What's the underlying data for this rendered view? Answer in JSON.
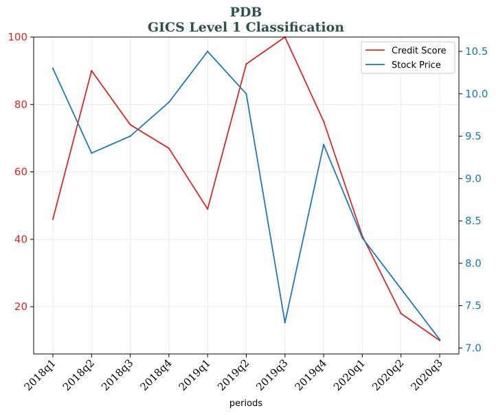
{
  "chart_data": {
    "type": "line",
    "title": "PDB",
    "subtitle": "GICS Level 1 Classification",
    "xlabel": "periods",
    "ylabel_left": "",
    "ylabel_right": "",
    "categories": [
      "2018q1",
      "2018q2",
      "2018q3",
      "2018q4",
      "2019q1",
      "2019q2",
      "2019q3",
      "2019q4",
      "2020q1",
      "2020q2",
      "2020q3"
    ],
    "y_left": {
      "range": [
        6,
        100
      ],
      "ticks": [
        20,
        40,
        60,
        80,
        100
      ],
      "tick_labels": [
        "20",
        "40",
        "60",
        "80",
        "100"
      ],
      "color": "#d62728"
    },
    "y_right": {
      "range": [
        6.93,
        10.67
      ],
      "ticks": [
        7.0,
        7.5,
        8.0,
        8.5,
        9.0,
        9.5,
        10.0,
        10.5
      ],
      "tick_labels": [
        "7.0",
        "7.5",
        "8.0",
        "8.5",
        "9.0",
        "9.5",
        "10.0",
        "10.5"
      ],
      "color": "#1f77b4"
    },
    "series": [
      {
        "name": "Credit Score",
        "axis": "left",
        "color": "#d62728",
        "values": [
          46,
          90,
          74,
          67,
          49,
          92,
          100,
          75,
          41,
          18,
          10
        ]
      },
      {
        "name": "Stock Price",
        "axis": "right",
        "color": "#1f77b4",
        "values": [
          10.3,
          9.3,
          9.5,
          9.9,
          10.5,
          10.0,
          7.3,
          9.4,
          8.3,
          7.7,
          7.1
        ]
      }
    ],
    "grid": true,
    "legend_position": "top-right"
  }
}
